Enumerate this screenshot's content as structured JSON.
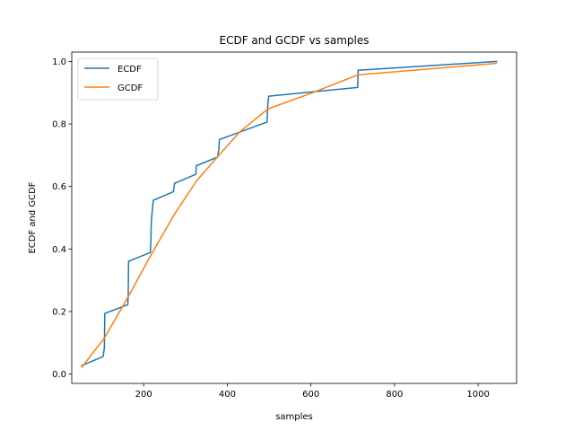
{
  "chart_data": {
    "type": "line",
    "title": "ECDF and GCDF vs samples",
    "xlabel": "samples",
    "ylabel": "ECDF and GCDF",
    "xlim": [
      28,
      1092
    ],
    "ylim": [
      -0.03,
      1.03
    ],
    "xticks": [
      200,
      400,
      600,
      800,
      1000
    ],
    "xtick_labels": [
      "200",
      "400",
      "600",
      "800",
      "1000"
    ],
    "yticks": [
      0.0,
      0.2,
      0.4,
      0.6,
      0.8,
      1.0
    ],
    "ytick_labels": [
      "0.0",
      "0.2",
      "0.4",
      "0.6",
      "0.8",
      "1.0"
    ],
    "grid": false,
    "legend_position": "upper-left",
    "series": [
      {
        "name": "ECDF",
        "color": "#1f77b4",
        "x": [
          52,
          103,
          106,
          107,
          162,
          163,
          164,
          216,
          217,
          218,
          219,
          221,
          223,
          271,
          274,
          276,
          325,
          326,
          327,
          377,
          380,
          381,
          495,
          496,
          497,
          499,
          712,
          713,
          1044
        ],
        "y": [
          0.027,
          0.056,
          0.083,
          0.194,
          0.222,
          0.25,
          0.361,
          0.389,
          0.417,
          0.472,
          0.5,
          0.528,
          0.556,
          0.583,
          0.611,
          0.611,
          0.639,
          0.667,
          0.667,
          0.694,
          0.722,
          0.75,
          0.806,
          0.833,
          0.861,
          0.889,
          0.917,
          0.972,
          1.0
        ]
      },
      {
        "name": "GCDF",
        "color": "#ff7f0e",
        "x": [
          52,
          106,
          162,
          218,
          274,
          326,
          380,
          430,
          497,
          600,
          712,
          1044
        ],
        "y": [
          0.022,
          0.115,
          0.245,
          0.382,
          0.512,
          0.617,
          0.7,
          0.775,
          0.848,
          0.898,
          0.957,
          0.994
        ]
      }
    ]
  }
}
